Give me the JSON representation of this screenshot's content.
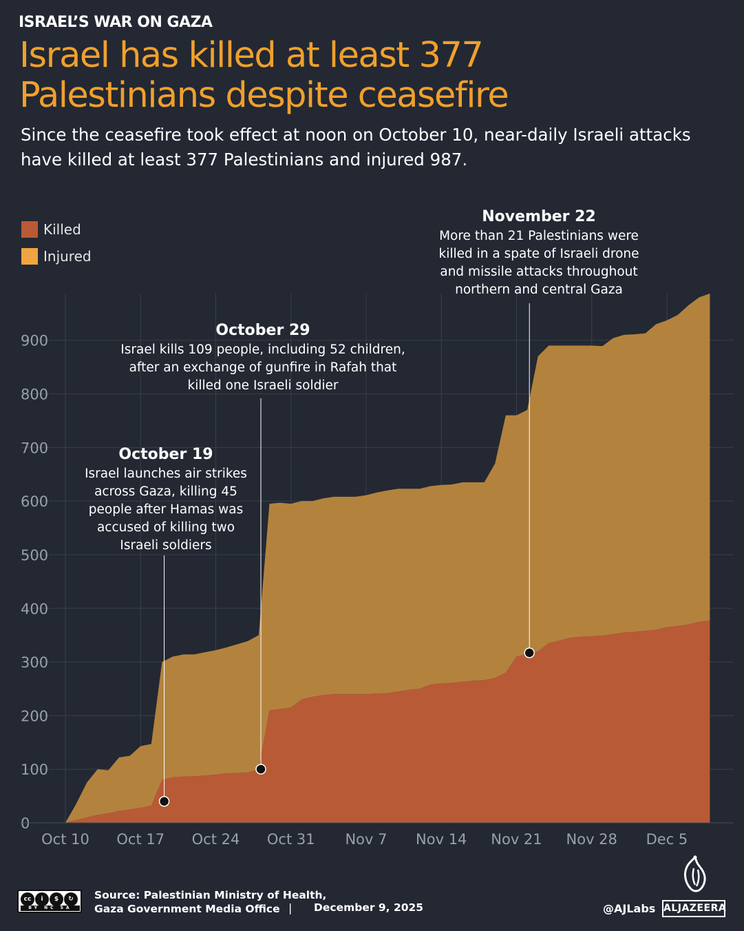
{
  "header": {
    "kicker": "ISRAEL’S WAR ON GAZA",
    "title_line1": "Israel has killed at least 377",
    "title_line2": "Palestinians despite ceasefire",
    "subtitle_line1": "Since the ceasefire took effect at noon on October 10, near-daily Israeli attacks",
    "subtitle_line2": "have killed at least 377 Palestinians and injured 987."
  },
  "colors": {
    "background": "#232833",
    "killed": "#b95a36",
    "injured": "#b3833e",
    "title": "#f0a02c",
    "gridline": "#3a404b",
    "axis_text": "#9aa0a8"
  },
  "legend": {
    "killed_label": "Killed",
    "injured_label": "Injured",
    "placement": "top-left"
  },
  "chart_data": {
    "type": "area",
    "stacked": true,
    "x_unit": "days since Oct 10, 2025",
    "xlim": [
      0,
      61
    ],
    "ylim": [
      0,
      987
    ],
    "yticks": [
      0,
      100,
      200,
      300,
      400,
      500,
      600,
      700,
      800,
      900
    ],
    "ytick_labels": [
      "0",
      "100",
      "200",
      "300",
      "400",
      "500",
      "600",
      "700",
      "800",
      "900"
    ],
    "xticks": [
      0,
      7,
      14,
      21,
      28,
      35,
      42,
      49,
      56
    ],
    "xtick_labels": [
      "Oct 10",
      "Oct 17",
      "Oct 24",
      "Oct 31",
      "Nov 7",
      "Nov 14",
      "Nov 21",
      "Nov 28",
      "Dec 5"
    ],
    "grid": true,
    "x": [
      0,
      1,
      2,
      3,
      4,
      5,
      6,
      7,
      8,
      9,
      10,
      11,
      12,
      13,
      14,
      15,
      16,
      17,
      18,
      19,
      20,
      21,
      22,
      23,
      24,
      25,
      26,
      27,
      28,
      29,
      30,
      31,
      32,
      33,
      34,
      35,
      36,
      37,
      38,
      39,
      40,
      41,
      42,
      43,
      44,
      45,
      46,
      47,
      48,
      49,
      50,
      51,
      52,
      53,
      54,
      55,
      56,
      57,
      58,
      59,
      60
    ],
    "series": [
      {
        "name": "Killed",
        "values": [
          0,
          5,
          10,
          15,
          18,
          22,
          25,
          28,
          32,
          80,
          85,
          86,
          87,
          88,
          90,
          92,
          93,
          94,
          100,
          210,
          212,
          215,
          230,
          235,
          238,
          240,
          240,
          240,
          240,
          241,
          242,
          245,
          248,
          250,
          258,
          260,
          261,
          263,
          265,
          266,
          270,
          280,
          310,
          315,
          320,
          335,
          340,
          345,
          347,
          348,
          349,
          352,
          355,
          356,
          358,
          360,
          365,
          367,
          370,
          375,
          377
        ]
      },
      {
        "name": "Injured",
        "values": [
          0,
          30,
          65,
          85,
          80,
          100,
          100,
          115,
          115,
          220,
          225,
          228,
          227,
          230,
          232,
          235,
          240,
          245,
          250,
          385,
          385,
          380,
          370,
          365,
          367,
          368,
          368,
          368,
          371,
          375,
          378,
          378,
          375,
          373,
          370,
          370,
          370,
          372,
          370,
          369,
          400,
          480,
          450,
          455,
          550,
          555,
          550,
          545,
          543,
          542,
          540,
          552,
          555,
          555,
          555,
          570,
          572,
          580,
          595,
          605,
          610
        ]
      }
    ],
    "annotations": [
      {
        "x": 9.2,
        "y": 40,
        "date": "October 19",
        "lines": [
          "Israel launches air strikes",
          "across Gaza, killing 45",
          "people after Hamas was",
          "accused of killing two",
          "Israeli soldiers"
        ]
      },
      {
        "x": 18.2,
        "y": 100,
        "date": "October 29",
        "lines": [
          "Israel kills 109 people, including 52 children,",
          "after an exchange of gunfire in Rafah that",
          "killed one Israeli soldier"
        ]
      },
      {
        "x": 43.2,
        "y": 317,
        "date": "November 22",
        "lines": [
          "More than 21 Palestinians were",
          "killed in a spate of Israeli drone",
          "and missile attacks throughout",
          "northern and central Gaza"
        ]
      }
    ]
  },
  "footer": {
    "source_line1": "Source:  Palestinian Ministry of Health,",
    "source_line2": "Gaza Government Media Office",
    "separator": "|",
    "date": "December 9, 2025",
    "handle": "@AJLabs",
    "brand": "ALJAZEERA",
    "license_icons": [
      "cc",
      "by",
      "nc",
      "sa"
    ],
    "license_text": "BY NC SA"
  }
}
